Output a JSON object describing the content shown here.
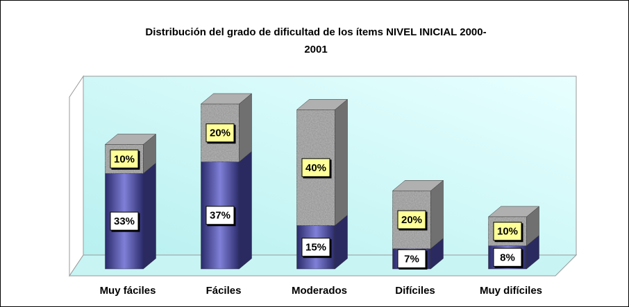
{
  "chart_data": {
    "type": "bar3d_stacked",
    "title": "Distribución del grado de dificultad de los ítems NIVEL INICIAL 2000-",
    "title_line2": "2001",
    "categories": [
      "Muy fáciles",
      "Fáciles",
      "Moderados",
      "Difíciles",
      "Muy difíciles"
    ],
    "series": [
      {
        "color": "#4a4a8c",
        "values": [
          33,
          37,
          15,
          7,
          8
        ],
        "value_labels": [
          "33%",
          "37%",
          "15%",
          "7%",
          "8%"
        ]
      },
      {
        "color": "#9a9a9a",
        "values": [
          10,
          20,
          40,
          20,
          10
        ],
        "value_labels": [
          "10%",
          "20%",
          "40%",
          "20%",
          "10%"
        ]
      }
    ]
  }
}
